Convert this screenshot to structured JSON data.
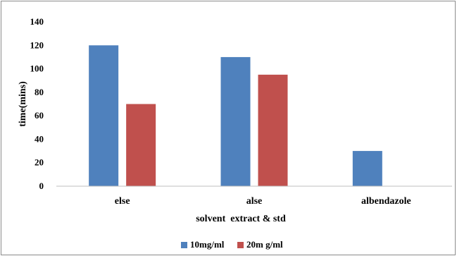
{
  "chart_data": {
    "type": "bar",
    "title": "",
    "xlabel": "solvent  extract & std",
    "ylabel": "time(mins)",
    "categories": [
      "else",
      "alse",
      "albendazole"
    ],
    "series": [
      {
        "name": "10mg/ml",
        "values": [
          120,
          110,
          30
        ],
        "color": "#4f81bd"
      },
      {
        "name": "20m g/ml",
        "values": [
          70,
          95,
          null
        ],
        "color": "#c0504d"
      }
    ],
    "ylim": [
      0,
      140
    ],
    "yticks": [
      0,
      20,
      40,
      60,
      80,
      100,
      120,
      140
    ],
    "grid": false,
    "legend_position": "bottom"
  }
}
